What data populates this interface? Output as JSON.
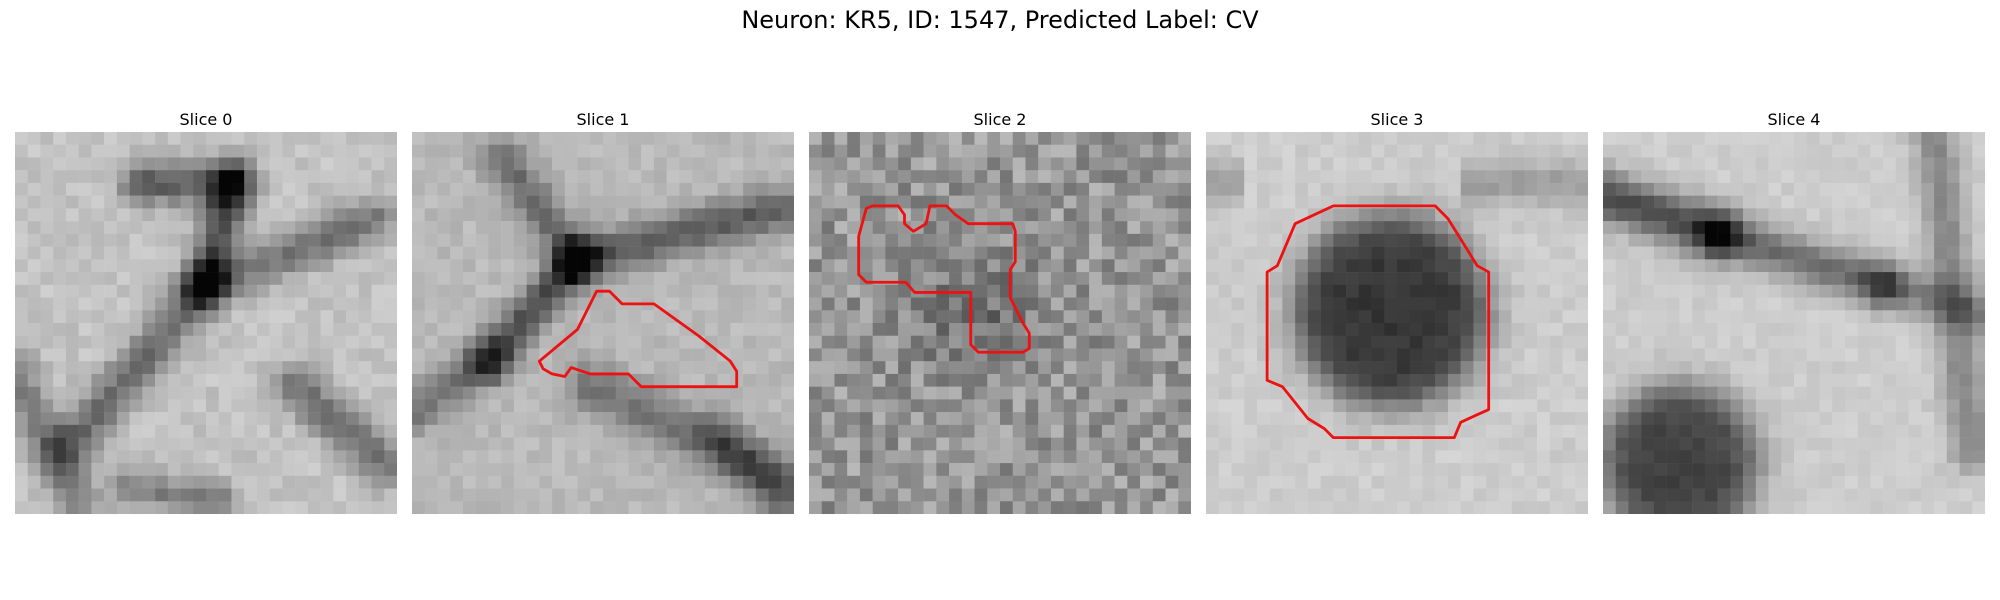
{
  "suptitle": "Neuron: KR5, ID: 1547, Predicted Label: CV",
  "contour_color": "#ee1111",
  "panels": [
    {
      "title": "Slice 0",
      "image": "blurred grayscale microscopy patch with dark membrane ridges",
      "has_contour": false
    },
    {
      "title": "Slice 1",
      "image": "grayscale patch with dark diagonal membranes, red contour around pale cell body",
      "has_contour": true
    },
    {
      "title": "Slice 2",
      "image": "noisy grayscale patch with irregular red contour",
      "has_contour": true
    },
    {
      "title": "Slice 3",
      "image": "grayscale patch with large dark round blob enclosed by red octagonal contour",
      "has_contour": true
    },
    {
      "title": "Slice 4",
      "image": "grayscale patch with dark diagonal band and dark blob at lower left",
      "has_contour": false
    }
  ]
}
